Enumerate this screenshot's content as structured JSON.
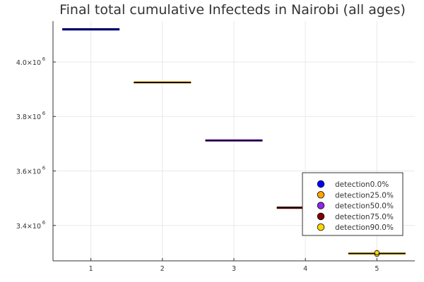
{
  "colors": {
    "blue": "#0000ff",
    "orange": "#ffa500",
    "purple": "#8a2be2",
    "maroon": "#800000",
    "gold": "#ffd700",
    "grid": "#e8e8e8",
    "axis": "#333333",
    "median": "#000000"
  },
  "chart_data": {
    "type": "box",
    "title": "Final total cumulative Infecteds in Nairobi (all ages)",
    "xlabel": "",
    "ylabel": "",
    "xlim": [
      0.47,
      5.53
    ],
    "ylim": [
      3270000,
      4150000
    ],
    "x_ticks": [
      {
        "value": 1,
        "label": "1"
      },
      {
        "value": 2,
        "label": "2"
      },
      {
        "value": 3,
        "label": "3"
      },
      {
        "value": 4,
        "label": "4"
      },
      {
        "value": 5,
        "label": "5"
      }
    ],
    "y_ticks": [
      {
        "value": 3400000,
        "mantissa": "3.4×10",
        "exponent": "6"
      },
      {
        "value": 3600000,
        "mantissa": "3.6×10",
        "exponent": "6"
      },
      {
        "value": 3800000,
        "mantissa": "3.8×10",
        "exponent": "6"
      },
      {
        "value": 4000000,
        "mantissa": "4.0×10",
        "exponent": "6"
      }
    ],
    "grid": true,
    "legend_position": "bottom-right",
    "series": [
      {
        "name": "detection0.0%",
        "color": "#0000ff",
        "x": 1,
        "value": 4120000
      },
      {
        "name": "detection25.0%",
        "color": "#ffa500",
        "x": 2,
        "value": 3925000
      },
      {
        "name": "detection50.0%",
        "color": "#8a2be2",
        "x": 3,
        "value": 3712000
      },
      {
        "name": "detection75.0%",
        "color": "#800000",
        "x": 4,
        "value": 3465000
      },
      {
        "name": "detection90.0%",
        "color": "#ffd700",
        "x": 5,
        "value": 3297000,
        "outliers": [
          3294000,
          3300000
        ]
      }
    ]
  }
}
